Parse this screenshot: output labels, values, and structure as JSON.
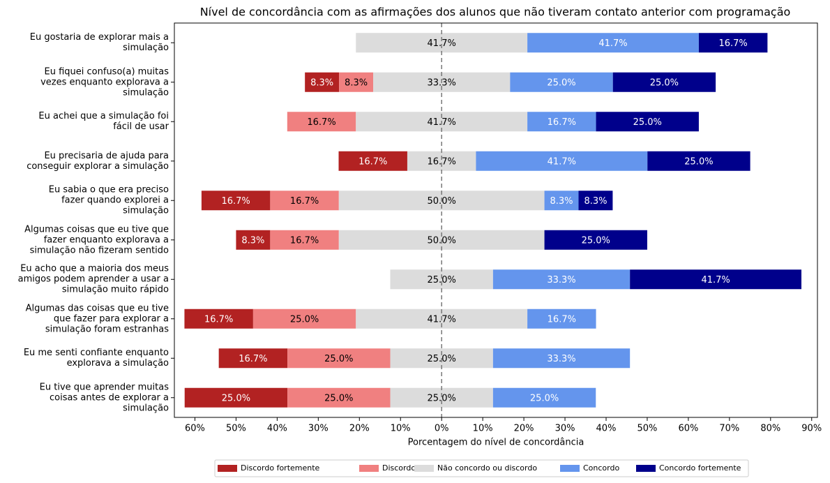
{
  "chart_data": {
    "type": "diverging_bar",
    "title": "Nível de concordância com as afirmações dos alunos que não tiveram contato anterior com programação",
    "x_label": "Porcentagem do nível de concordância",
    "categories": [
      "Eu gostaria de explorar mais a\nsimulação",
      "Eu fiquei confuso(a) muitas\nvezes enquanto explorava a\nsimulação",
      "Eu achei que a simulação foi\nfácil de usar",
      "Eu precisaria de ajuda para\nconseguir explorar a simulação",
      "Eu sabia o que era preciso\nfazer quando explorei a\nsimulação",
      "Algumas coisas que eu tive que\nfazer enquanto explorava a\nsimulação não fizeram sentido",
      "Eu acho que a maioria dos meus\namigos podem aprender a usar a\nsimulação muito rápido",
      "Algumas das coisas que eu tive\nque fazer para explorar a\nsimulação foram estranhas",
      "Eu me senti confiante enquanto\nexplorava a simulação",
      "Eu tive que aprender muitas\ncoisas antes de explorar a\nsimulação"
    ],
    "series": [
      {
        "name": "Discordo fortemente",
        "color": "#b22222",
        "values": [
          0,
          8.3,
          0,
          16.7,
          16.7,
          8.3,
          0,
          16.7,
          16.7,
          25.0
        ],
        "value_labels": [
          null,
          "8.3%",
          null,
          "16.7%",
          "16.7%",
          "8.3%",
          null,
          "16.7%",
          "16.7%",
          "25.0%"
        ]
      },
      {
        "name": "Discordo",
        "color": "#f08080",
        "values": [
          0,
          8.3,
          16.7,
          0,
          16.7,
          16.7,
          0,
          25.0,
          25.0,
          25.0
        ],
        "value_labels": [
          null,
          "8.3%",
          "16.7%",
          null,
          "16.7%",
          "16.7%",
          null,
          "25.0%",
          "25.0%",
          "25.0%"
        ]
      },
      {
        "name": "Não concordo ou discordo",
        "color": "#dcdcdc",
        "values": [
          41.7,
          33.3,
          41.7,
          16.7,
          50.0,
          50.0,
          25.0,
          41.7,
          25.0,
          25.0
        ],
        "value_labels": [
          "41.7%",
          "33.3%",
          "41.7%",
          "16.7%",
          "50.0%",
          "50.0%",
          "25.0%",
          "41.7%",
          "25.0%",
          "25.0%"
        ]
      },
      {
        "name": "Concordo",
        "color": "#6495ed",
        "values": [
          41.7,
          25.0,
          16.7,
          41.7,
          8.3,
          0,
          33.3,
          16.7,
          33.3,
          25.0
        ],
        "value_labels": [
          "41.7%",
          "25.0%",
          "16.7%",
          "41.7%",
          "8.3%",
          null,
          "33.3%",
          "16.7%",
          "33.3%",
          "25.0%"
        ]
      },
      {
        "name": "Concordo fortemente",
        "color": "#00008b",
        "values": [
          16.7,
          25.0,
          25.0,
          25.0,
          8.3,
          25.0,
          41.7,
          0,
          0,
          0
        ],
        "value_labels": [
          "16.7%",
          "25.0%",
          "25.0%",
          "25.0%",
          "8.3%",
          "25.0%",
          "41.7%",
          null,
          null,
          null
        ]
      }
    ],
    "xlim": [
      -65,
      91.4
    ],
    "xticks": [
      {
        "value": -60,
        "label": "60%"
      },
      {
        "value": -50,
        "label": "50%"
      },
      {
        "value": -40,
        "label": "40%"
      },
      {
        "value": -30,
        "label": "30%"
      },
      {
        "value": -20,
        "label": "20%"
      },
      {
        "value": -10,
        "label": "10%"
      },
      {
        "value": 0,
        "label": "0%"
      },
      {
        "value": 10,
        "label": "10%"
      },
      {
        "value": 20,
        "label": "20%"
      },
      {
        "value": 30,
        "label": "30%"
      },
      {
        "value": 40,
        "label": "40%"
      },
      {
        "value": 50,
        "label": "50%"
      },
      {
        "value": 60,
        "label": "60%"
      },
      {
        "value": 70,
        "label": "70%"
      },
      {
        "value": 80,
        "label": "80%"
      },
      {
        "value": 90,
        "label": "90%"
      }
    ],
    "grid": false,
    "legend": "bottom"
  }
}
